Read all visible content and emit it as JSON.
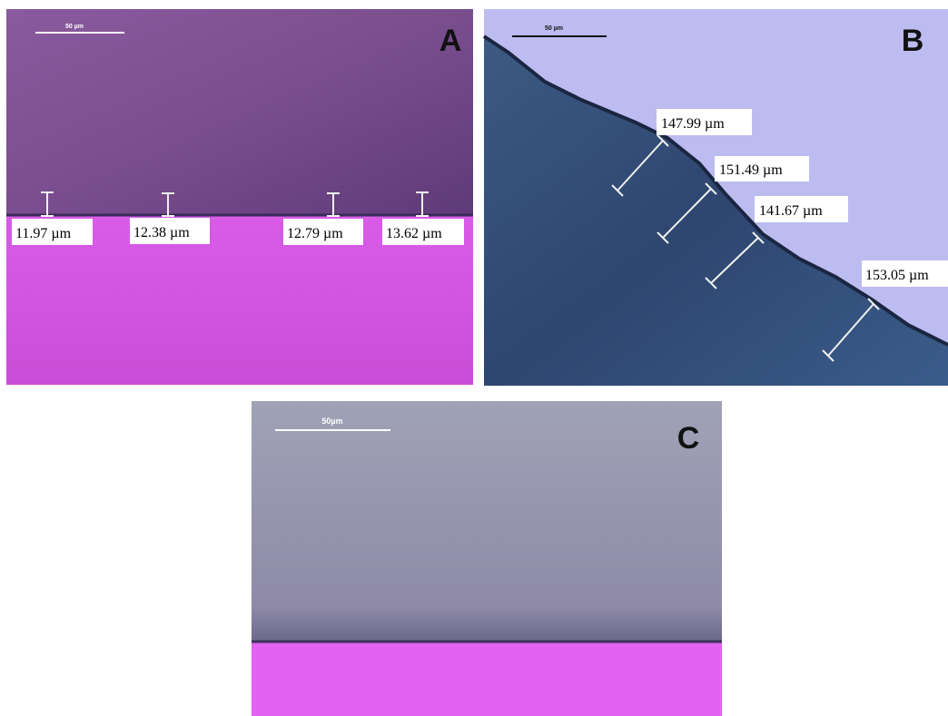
{
  "panels": [
    {
      "label": "A",
      "scale_bar": "50 µm",
      "measurements": [
        "11.97 µm",
        "12.38 µm",
        "12.79 µm",
        "13.62 µm"
      ]
    },
    {
      "label": "B",
      "scale_bar": "50 µm",
      "measurements": [
        "147.99 µm",
        "151.49 µm",
        "141.67 µm",
        "153.05 µm"
      ]
    },
    {
      "label": "C",
      "scale_bar": "50µm"
    }
  ]
}
